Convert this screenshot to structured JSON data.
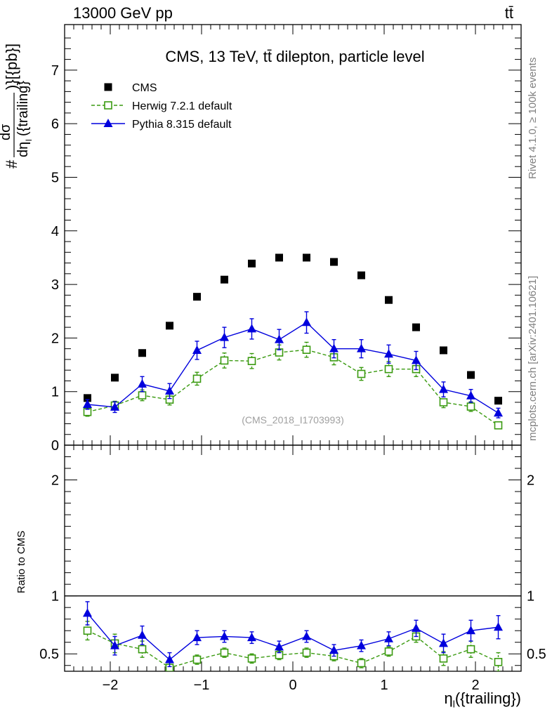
{
  "header": {
    "left": "13000 GeV pp",
    "right": "tt̄"
  },
  "side_labels": {
    "rivet": "Rivet 4.1.0, ≥ 100k events",
    "source": "mcplots.cern.ch [arXiv:2401.10621]"
  },
  "watermark": "(CMS_2018_I1703993)",
  "ylabel_main": {
    "prefix": "#",
    "num": "dσ",
    "den": "dη",
    "den_sub": "l",
    "den_rest": "({trailing}",
    "suffix": ")}[{pb}]"
  },
  "ratio_ylabel": "Ratio to CMS",
  "xlabel": {
    "main": "η",
    "sub": "l",
    "rest": "({trailing})"
  },
  "chart_data": [
    {
      "type": "scatter",
      "title": "CMS, 13 TeV, tt̄ dilepton, particle level",
      "ylim": [
        0,
        7.85
      ],
      "xlim": [
        -2.5,
        2.5
      ],
      "yticks": [
        0,
        1,
        2,
        3,
        4,
        5,
        6,
        7
      ],
      "ytick_labels": [
        "0",
        "1",
        "2",
        "3",
        "4",
        "5",
        "6",
        "7"
      ],
      "x": [
        -2.25,
        -1.95,
        -1.65,
        -1.35,
        -1.05,
        -0.75,
        -0.45,
        -0.15,
        0.15,
        0.45,
        0.75,
        1.05,
        1.35,
        1.65,
        1.95,
        2.25
      ],
      "series": [
        {
          "name": "CMS",
          "color": "#000000",
          "marker": "square",
          "values": [
            0.88,
            1.26,
            1.72,
            2.23,
            2.77,
            3.09,
            3.39,
            3.5,
            3.5,
            3.42,
            3.17,
            2.71,
            2.2,
            1.77,
            1.31,
            0.83
          ],
          "errors": [
            0,
            0,
            0,
            0,
            0,
            0,
            0,
            0,
            0,
            0,
            0,
            0,
            0,
            0,
            0,
            0
          ]
        },
        {
          "name": "Herwig 7.2.1 default",
          "color": "#3a9a10",
          "marker": "open-square",
          "line": "dashed",
          "values": [
            0.62,
            0.74,
            0.93,
            0.85,
            1.24,
            1.58,
            1.57,
            1.73,
            1.78,
            1.64,
            1.33,
            1.42,
            1.42,
            0.8,
            0.72,
            0.37
          ],
          "errors": [
            0.08,
            0.08,
            0.1,
            0.1,
            0.12,
            0.14,
            0.14,
            0.14,
            0.14,
            0.14,
            0.12,
            0.14,
            0.14,
            0.1,
            0.09,
            0.06
          ]
        },
        {
          "name": "Pythia 8.315 default",
          "color": "#0000dd",
          "marker": "triangle",
          "line": "solid",
          "values": [
            0.76,
            0.71,
            1.14,
            1.01,
            1.77,
            2.01,
            2.17,
            1.97,
            2.29,
            1.8,
            1.8,
            1.7,
            1.58,
            1.04,
            0.92,
            0.6
          ],
          "errors": [
            0.09,
            0.1,
            0.14,
            0.14,
            0.17,
            0.19,
            0.19,
            0.19,
            0.2,
            0.17,
            0.17,
            0.17,
            0.17,
            0.14,
            0.12,
            0.09
          ]
        }
      ]
    },
    {
      "type": "scatter",
      "ylabel": "Ratio to CMS",
      "ylim": [
        0.35,
        2.3
      ],
      "xlim": [
        -2.5,
        2.5
      ],
      "yticks": [
        0.5,
        1,
        2
      ],
      "ytick_labels": [
        "0.5",
        "1",
        "2"
      ],
      "xticks": [
        -2,
        -1,
        0,
        1,
        2
      ],
      "xtick_labels": [
        "−2",
        "−1",
        "0",
        "1",
        "2"
      ],
      "reference_line": 1,
      "x": [
        -2.25,
        -1.95,
        -1.65,
        -1.35,
        -1.05,
        -0.75,
        -0.45,
        -0.15,
        0.15,
        0.45,
        0.75,
        1.05,
        1.35,
        1.65,
        1.95,
        2.25
      ],
      "series": [
        {
          "name": "Herwig 7.2.1 default",
          "color": "#3a9a10",
          "marker": "open-square",
          "line": "dashed",
          "values": [
            0.7,
            0.59,
            0.54,
            0.38,
            0.45,
            0.51,
            0.46,
            0.49,
            0.51,
            0.48,
            0.42,
            0.52,
            0.65,
            0.46,
            0.54,
            0.43
          ],
          "errors": [
            0.08,
            0.08,
            0.07,
            0.06,
            0.04,
            0.04,
            0.04,
            0.04,
            0.04,
            0.04,
            0.04,
            0.04,
            0.05,
            0.06,
            0.07,
            0.08
          ]
        },
        {
          "name": "Pythia 8.315 default",
          "color": "#0000dd",
          "marker": "triangle",
          "line": "solid",
          "values": [
            0.85,
            0.57,
            0.66,
            0.45,
            0.64,
            0.65,
            0.64,
            0.56,
            0.65,
            0.53,
            0.57,
            0.63,
            0.72,
            0.59,
            0.7,
            0.73
          ],
          "errors": [
            0.1,
            0.08,
            0.08,
            0.06,
            0.06,
            0.05,
            0.05,
            0.05,
            0.05,
            0.05,
            0.05,
            0.06,
            0.07,
            0.08,
            0.09,
            0.1
          ]
        }
      ]
    }
  ]
}
